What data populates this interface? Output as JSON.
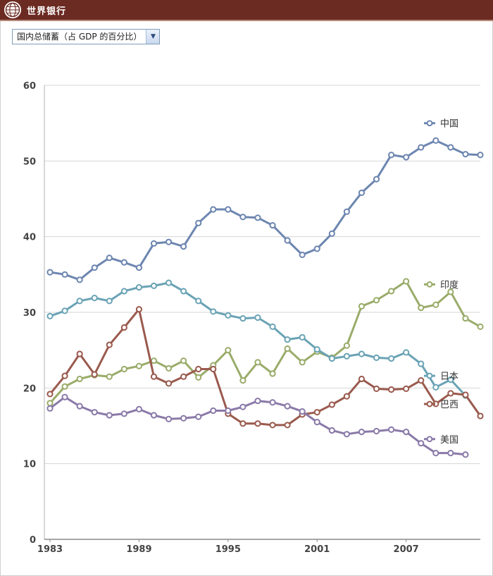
{
  "header": {
    "brand": "世界银行",
    "logo_icon": "world-bank-globe-icon",
    "bar_color": "#6b2a22"
  },
  "indicator_select": {
    "selected": "国内总储蓄（占 GDP 的百分比）",
    "arrow_icon": "chevron-down-icon"
  },
  "chart_data": {
    "type": "line",
    "title": "",
    "xlabel": "",
    "ylabel": "",
    "ylim": [
      0,
      60
    ],
    "yticks": [
      "0",
      "10",
      "20",
      "30",
      "40",
      "50",
      "60"
    ],
    "xlim": [
      1983,
      2012
    ],
    "xticks": [
      "1983",
      "1989",
      "1995",
      "2001",
      "2007"
    ],
    "grid": "horizontal",
    "legend": "inline labels at right end of each line",
    "x": [
      1983,
      1984,
      1985,
      1986,
      1987,
      1988,
      1989,
      1990,
      1991,
      1992,
      1993,
      1994,
      1995,
      1996,
      1997,
      1998,
      1999,
      2000,
      2001,
      2002,
      2003,
      2004,
      2005,
      2006,
      2007,
      2008,
      2009,
      2010,
      2011,
      2012
    ],
    "series": [
      {
        "name": "中国",
        "color": "#6d86b0",
        "values": [
          35.3,
          35.0,
          34.3,
          35.9,
          37.2,
          36.6,
          35.9,
          39.1,
          39.3,
          38.7,
          41.8,
          43.6,
          43.6,
          42.6,
          42.5,
          41.5,
          39.5,
          37.6,
          38.4,
          40.4,
          43.3,
          45.8,
          47.6,
          50.8,
          50.5,
          51.8,
          52.7,
          51.8,
          50.9,
          50.8
        ]
      },
      {
        "name": "印度",
        "color": "#9aac6a",
        "values": [
          18.0,
          20.2,
          21.2,
          21.7,
          21.5,
          22.5,
          22.9,
          23.6,
          22.6,
          23.6,
          21.4,
          23.0,
          25.0,
          21.0,
          23.4,
          21.9,
          25.2,
          23.4,
          24.8,
          24.0,
          25.6,
          30.8,
          31.6,
          32.8,
          34.1,
          30.6,
          31.0,
          32.7,
          29.2,
          28.1
        ]
      },
      {
        "name": "日本",
        "color": "#6aa3b5",
        "values": [
          29.5,
          30.2,
          31.5,
          31.9,
          31.5,
          32.8,
          33.3,
          33.5,
          33.9,
          32.8,
          31.5,
          30.1,
          29.6,
          29.2,
          29.3,
          28.1,
          26.4,
          26.7,
          25.1,
          23.9,
          24.2,
          24.5,
          24.0,
          23.9,
          24.7,
          23.2,
          20.1,
          21.1,
          19.0,
          null
        ]
      },
      {
        "name": "巴西",
        "color": "#9a5a4e",
        "values": [
          19.2,
          21.6,
          24.5,
          21.8,
          25.7,
          28.0,
          30.4,
          21.5,
          20.6,
          21.5,
          22.5,
          22.5,
          16.6,
          15.3,
          15.3,
          15.1,
          15.1,
          16.5,
          16.8,
          17.8,
          18.9,
          21.2,
          19.9,
          19.8,
          19.9,
          21.0,
          17.9,
          19.3,
          19.1,
          16.3
        ]
      },
      {
        "name": "美国",
        "color": "#8a7aa8",
        "values": [
          17.3,
          18.8,
          17.6,
          16.8,
          16.4,
          16.6,
          17.2,
          16.4,
          15.9,
          16.0,
          16.2,
          17.0,
          17.0,
          17.5,
          18.3,
          18.1,
          17.6,
          16.9,
          15.5,
          14.4,
          13.9,
          14.2,
          14.3,
          14.5,
          14.2,
          12.7,
          11.4,
          11.4,
          11.2,
          null
        ]
      }
    ]
  }
}
